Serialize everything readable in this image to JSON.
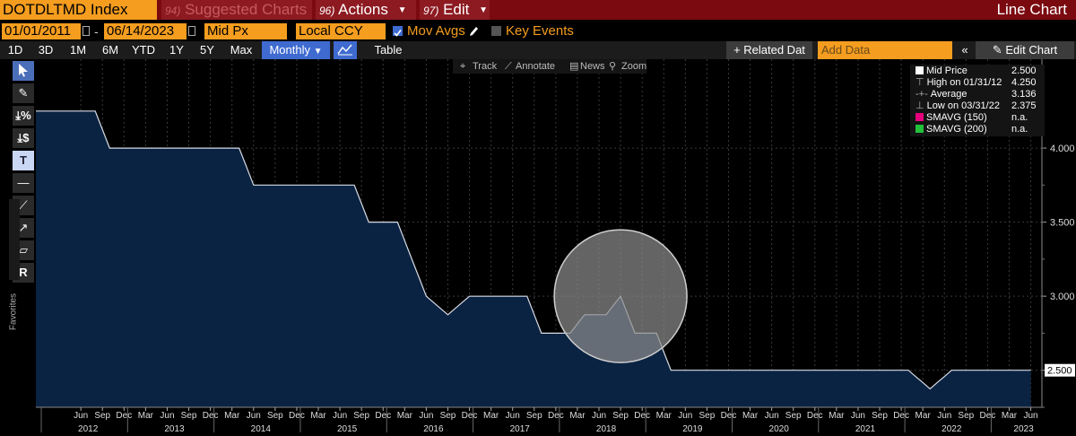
{
  "topbar": {
    "ticker": "DOTDLTMD Index",
    "suggested_key": "94)",
    "suggested_label": "Suggested Charts",
    "actions_key": "96)",
    "actions_label": "Actions",
    "edit_key": "97)",
    "edit_label": "Edit",
    "chart_type_label": "Line Chart"
  },
  "range_bar": {
    "start_date": "01/01/2011",
    "end_date": "06/14/2023",
    "price_field": "Mid Px",
    "currency": "Local CCY",
    "mov_avgs_label": "Mov Avgs",
    "key_events_label": "Key Events"
  },
  "period_bar": {
    "periods": [
      "1D",
      "3D",
      "1M",
      "6M",
      "YTD",
      "1Y",
      "5Y",
      "Max"
    ],
    "frequency": "Monthly",
    "table_label": "Table",
    "related_label": "+ Related Dat",
    "add_data_placeholder": "Add Data",
    "edit_chart_label": "Edit Chart"
  },
  "annotate_bar": {
    "track": "Track",
    "annotate": "Annotate",
    "news": "News",
    "zoom": "Zoom"
  },
  "left_tools": {
    "favorites_label": "Favorites"
  },
  "legend": {
    "rows": [
      {
        "label": "Mid Price",
        "value": "2.500",
        "swatch": "#ffffff"
      },
      {
        "label": "High on 01/31/12",
        "value": "4.250",
        "swatch": "none"
      },
      {
        "label": "Average",
        "value": "3.136",
        "swatch": "none"
      },
      {
        "label": "Low on 03/31/22",
        "value": "2.375",
        "swatch": "none"
      },
      {
        "label": "SMAVG (150)",
        "value": "n.a.",
        "swatch": "#e6007e"
      },
      {
        "label": "SMAVG (200)",
        "value": "n.a.",
        "swatch": "#23c13b"
      }
    ]
  },
  "colors": {
    "area_fill": "#0b2342",
    "line": "#d8dde6",
    "accent_orange": "#f49d1f",
    "topbar_red": "#7a0a10",
    "highlight_circle": "#8a8a8a"
  },
  "chart_data": {
    "type": "area",
    "x": [
      "2011-12",
      "2012-01",
      "2012-02",
      "2012-03",
      "2012-04",
      "2012-05",
      "2012-06",
      "2012-07",
      "2012-08",
      "2012-09",
      "2012-10",
      "2012-11",
      "2012-12",
      "2013-01",
      "2013-02",
      "2013-03",
      "2013-04",
      "2013-05",
      "2013-06",
      "2013-07",
      "2013-08",
      "2013-09",
      "2013-10",
      "2013-11",
      "2013-12",
      "2014-01",
      "2014-02",
      "2014-03",
      "2014-04",
      "2014-05",
      "2014-06",
      "2014-07",
      "2014-08",
      "2014-09",
      "2014-10",
      "2014-11",
      "2014-12",
      "2015-01",
      "2015-02",
      "2015-03",
      "2015-04",
      "2015-05",
      "2015-06",
      "2015-07",
      "2015-08",
      "2015-09",
      "2015-10",
      "2015-11",
      "2015-12",
      "2016-01",
      "2016-02",
      "2016-03",
      "2016-04",
      "2016-05",
      "2016-06",
      "2016-07",
      "2016-08",
      "2016-09",
      "2016-10",
      "2016-11",
      "2016-12",
      "2017-01",
      "2017-02",
      "2017-03",
      "2017-04",
      "2017-05",
      "2017-06",
      "2017-07",
      "2017-08",
      "2017-09",
      "2017-10",
      "2017-11",
      "2017-12",
      "2018-01",
      "2018-02",
      "2018-03",
      "2018-04",
      "2018-05",
      "2018-06",
      "2018-07",
      "2018-08",
      "2018-09",
      "2018-10",
      "2018-11",
      "2018-12",
      "2019-01",
      "2019-02",
      "2019-03",
      "2019-04",
      "2019-05",
      "2019-06",
      "2019-07",
      "2019-08",
      "2019-09",
      "2019-10",
      "2019-11",
      "2019-12",
      "2020-01",
      "2020-02",
      "2020-03",
      "2020-04",
      "2020-05",
      "2020-06",
      "2020-07",
      "2020-08",
      "2020-09",
      "2020-10",
      "2020-11",
      "2020-12",
      "2021-01",
      "2021-02",
      "2021-03",
      "2021-04",
      "2021-05",
      "2021-06",
      "2021-07",
      "2021-08",
      "2021-09",
      "2021-10",
      "2021-11",
      "2021-12",
      "2022-01",
      "2022-02",
      "2022-03",
      "2022-04",
      "2022-05",
      "2022-06",
      "2022-07",
      "2022-08",
      "2022-09",
      "2022-10",
      "2022-11",
      "2022-12",
      "2023-01",
      "2023-02",
      "2023-03",
      "2023-04",
      "2023-05",
      "2023-06"
    ],
    "series": [
      {
        "name": "Mid Price",
        "values": [
          4.25,
          4.25,
          4.25,
          4.25,
          4.25,
          4.25,
          4.25,
          4.25,
          4.25,
          4.125,
          4.0,
          4.0,
          4.0,
          4.0,
          4.0,
          4.0,
          4.0,
          4.0,
          4.0,
          4.0,
          4.0,
          4.0,
          4.0,
          4.0,
          4.0,
          4.0,
          4.0,
          4.0,
          4.0,
          3.875,
          3.75,
          3.75,
          3.75,
          3.75,
          3.75,
          3.75,
          3.75,
          3.75,
          3.75,
          3.75,
          3.75,
          3.75,
          3.75,
          3.75,
          3.75,
          3.625,
          3.5,
          3.5,
          3.5,
          3.5,
          3.5,
          3.375,
          3.25,
          3.125,
          3.0,
          2.958,
          2.917,
          2.875,
          2.917,
          2.958,
          3.0,
          3.0,
          3.0,
          3.0,
          3.0,
          3.0,
          3.0,
          3.0,
          3.0,
          2.875,
          2.75,
          2.75,
          2.75,
          2.75,
          2.75,
          2.813,
          2.875,
          2.875,
          2.875,
          2.875,
          2.938,
          3.0,
          2.875,
          2.75,
          2.75,
          2.75,
          2.75,
          2.625,
          2.5,
          2.5,
          2.5,
          2.5,
          2.5,
          2.5,
          2.5,
          2.5,
          2.5,
          2.5,
          2.5,
          2.5,
          2.5,
          2.5,
          2.5,
          2.5,
          2.5,
          2.5,
          2.5,
          2.5,
          2.5,
          2.5,
          2.5,
          2.5,
          2.5,
          2.5,
          2.5,
          2.5,
          2.5,
          2.5,
          2.5,
          2.5,
          2.5,
          2.5,
          2.458,
          2.417,
          2.375,
          2.417,
          2.458,
          2.5,
          2.5,
          2.5,
          2.5,
          2.5,
          2.5,
          2.5,
          2.5,
          2.5,
          2.5,
          2.5,
          2.5
        ]
      }
    ],
    "ylim": [
      2.25,
      4.6
    ],
    "yticks": [
      "2.500",
      "3.000",
      "3.500",
      "4.000"
    ],
    "last_value_label": "2.500",
    "x_tick_months": [
      {
        "m": "Jun",
        "d": "2012-06"
      },
      {
        "m": "Sep",
        "d": "2012-09"
      },
      {
        "m": "Dec",
        "d": "2012-12"
      },
      {
        "m": "Mar",
        "d": "2013-03"
      },
      {
        "m": "Jun",
        "d": "2013-06"
      },
      {
        "m": "Sep",
        "d": "2013-09"
      },
      {
        "m": "Dec",
        "d": "2013-12"
      },
      {
        "m": "Mar",
        "d": "2014-03"
      },
      {
        "m": "Jun",
        "d": "2014-06"
      },
      {
        "m": "Sep",
        "d": "2014-09"
      },
      {
        "m": "Dec",
        "d": "2014-12"
      },
      {
        "m": "Mar",
        "d": "2015-03"
      },
      {
        "m": "Jun",
        "d": "2015-06"
      },
      {
        "m": "Sep",
        "d": "2015-09"
      },
      {
        "m": "Dec",
        "d": "2015-12"
      },
      {
        "m": "Mar",
        "d": "2016-03"
      },
      {
        "m": "Jun",
        "d": "2016-06"
      },
      {
        "m": "Sep",
        "d": "2016-09"
      },
      {
        "m": "Dec",
        "d": "2016-12"
      },
      {
        "m": "Mar",
        "d": "2017-03"
      },
      {
        "m": "Jun",
        "d": "2017-06"
      },
      {
        "m": "Sep",
        "d": "2017-09"
      },
      {
        "m": "Dec",
        "d": "2017-12"
      },
      {
        "m": "Mar",
        "d": "2018-03"
      },
      {
        "m": "Jun",
        "d": "2018-06"
      },
      {
        "m": "Sep",
        "d": "2018-09"
      },
      {
        "m": "Dec",
        "d": "2018-12"
      },
      {
        "m": "Mar",
        "d": "2019-03"
      },
      {
        "m": "Jun",
        "d": "2019-06"
      },
      {
        "m": "Sep",
        "d": "2019-09"
      },
      {
        "m": "Dec",
        "d": "2019-12"
      },
      {
        "m": "Mar",
        "d": "2020-03"
      },
      {
        "m": "Jun",
        "d": "2020-06"
      },
      {
        "m": "Sep",
        "d": "2020-09"
      },
      {
        "m": "Dec",
        "d": "2020-12"
      },
      {
        "m": "Mar",
        "d": "2021-03"
      },
      {
        "m": "Jun",
        "d": "2021-06"
      },
      {
        "m": "Sep",
        "d": "2021-09"
      },
      {
        "m": "Dec",
        "d": "2021-12"
      },
      {
        "m": "Mar",
        "d": "2022-03"
      },
      {
        "m": "Jun",
        "d": "2022-06"
      },
      {
        "m": "Sep",
        "d": "2022-09"
      },
      {
        "m": "Dec",
        "d": "2022-12"
      },
      {
        "m": "Mar",
        "d": "2023-03"
      },
      {
        "m": "Jun",
        "d": "2023-06"
      }
    ],
    "x_tick_years": [
      {
        "y": "2012",
        "d": "2012-07"
      },
      {
        "y": "2013",
        "d": "2013-07"
      },
      {
        "y": "2014",
        "d": "2014-07"
      },
      {
        "y": "2015",
        "d": "2015-07"
      },
      {
        "y": "2016",
        "d": "2016-07"
      },
      {
        "y": "2017",
        "d": "2017-07"
      },
      {
        "y": "2018",
        "d": "2018-07"
      },
      {
        "y": "2019",
        "d": "2019-07"
      },
      {
        "y": "2020",
        "d": "2020-07"
      },
      {
        "y": "2021",
        "d": "2021-07"
      },
      {
        "y": "2022",
        "d": "2022-07"
      },
      {
        "y": "2023",
        "d": "2023-05"
      }
    ],
    "highlight": {
      "center_date": "2018-09",
      "center_value": 3.0
    },
    "grid": true,
    "legend_position": "top-right"
  }
}
